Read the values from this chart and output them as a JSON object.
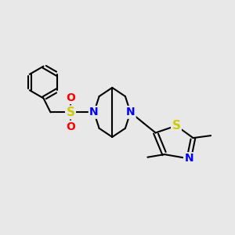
{
  "background_color": "#e8e8e8",
  "bond_color": "#000000",
  "bond_width": 1.5,
  "atom_colors": {
    "N": "#0000FF",
    "S": "#CCCC00",
    "O": "#FF0000",
    "C": "#000000"
  },
  "font_size_atom": 10,
  "figsize": [
    3.0,
    3.0
  ],
  "dpi": 100
}
